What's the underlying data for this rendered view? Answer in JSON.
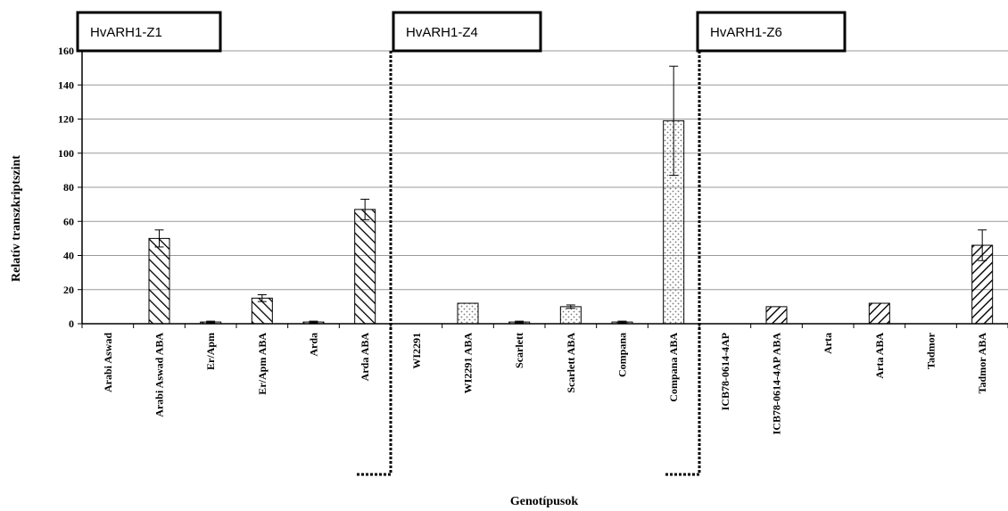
{
  "chart_data": {
    "type": "bar",
    "xlabel": "Genotípusok",
    "ylabel": "Relatív transzkriptszint",
    "ylim": [
      0,
      160
    ],
    "yticks": [
      0,
      20,
      40,
      60,
      80,
      100,
      120,
      140,
      160
    ],
    "grid": true,
    "groups": [
      {
        "label": "HvARH1-Z1",
        "categories": [
          "Arabi Aswad",
          "Arabi Aswad ABA",
          "Er/Apm",
          "Er/Apm ABA",
          "Arda",
          "Arda ABA"
        ]
      },
      {
        "label": "HvARH1-Z4",
        "categories": [
          "WI2291",
          "WI2291 ABA",
          "Scarlett",
          "Scarlett ABA",
          "Compana",
          "Compana ABA"
        ]
      },
      {
        "label": "HvARH1-Z6",
        "categories": [
          "ICB78-0614-4AP",
          "ICB78-0614-4AP ABA",
          "Arta",
          "Arta ABA",
          "Tadmor",
          "Tadmor ABA"
        ]
      }
    ],
    "categories": [
      "Arabi Aswad",
      "Arabi Aswad ABA",
      "Er/Apm",
      "Er/Apm ABA",
      "Arda",
      "Arda ABA",
      "WI2291",
      "WI2291 ABA",
      "Scarlett",
      "Scarlett ABA",
      "Compana",
      "Compana ABA",
      "ICB78-0614-4AP",
      "ICB78-0614-4AP ABA",
      "Arta",
      "Arta ABA",
      "Tadmor",
      "Tadmor ABA"
    ],
    "values": [
      0,
      50,
      1,
      15,
      1,
      67,
      0,
      12,
      1,
      10,
      1,
      119,
      0,
      10,
      0,
      12,
      0,
      46
    ],
    "errors": [
      0,
      5,
      0.5,
      2,
      0.5,
      6,
      0,
      0,
      0.5,
      1,
      0.5,
      32,
      0,
      0,
      0,
      0,
      0,
      9
    ],
    "patterns": [
      "diag-wide",
      "diag-wide",
      "diag-wide",
      "diag-wide",
      "diag-wide",
      "diag-wide",
      "dots",
      "dots",
      "dots",
      "dots",
      "dots",
      "dots",
      "diag-bold",
      "diag-bold",
      "diag-bold",
      "diag-bold",
      "diag-bold",
      "diag-bold"
    ],
    "colors": {
      "grid": "#999999",
      "axis": "#000000",
      "bar": "#000000",
      "dots": "#777777"
    }
  }
}
